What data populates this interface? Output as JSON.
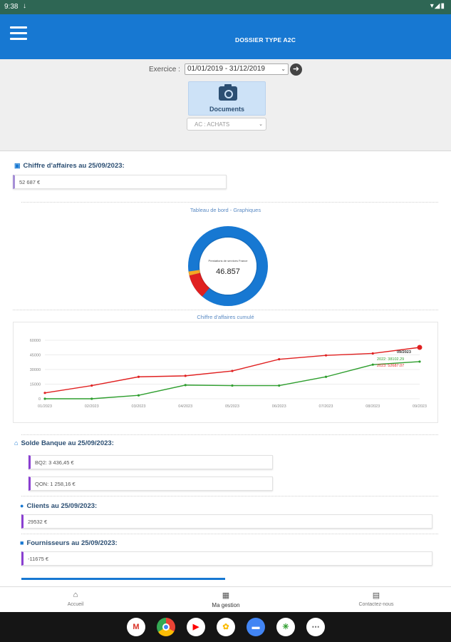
{
  "status_bar": {
    "time": "9:38"
  },
  "app_bar": {
    "title": "DOSSIER TYPE A2C"
  },
  "filters": {
    "exercise_label": "Exercice :",
    "exercise_value": "01/01/2019 - 31/12/2019",
    "documents_label": "Documents",
    "journal_value": "AC : ACHATS"
  },
  "revenue": {
    "title": "Chiffre d'affaires au 25/09/2023:",
    "value": "52 687 €"
  },
  "dashboard": {
    "caption": "Tableau de bord - Graphiques",
    "donut_caption": "Prestations de services France",
    "donut_value": "46.857",
    "donut_colors": [
      "#1778d2",
      "#e02020",
      "#f5a623"
    ]
  },
  "cumulative": {
    "caption": "Chiffre d'affaires cumulé",
    "tooltip_title": "09/2023",
    "tooltip_line_2022": "2022: 38102.29",
    "tooltip_line_2023": "2023: 52687.07"
  },
  "chart_data": {
    "type": "line",
    "x": [
      "01/2023",
      "02/2023",
      "03/2023",
      "04/2023",
      "05/2023",
      "06/2023",
      "07/2023",
      "08/2023",
      "09/2023"
    ],
    "y_ticks": [
      "0",
      "15000",
      "30000",
      "45000",
      "60000"
    ],
    "ylim": [
      0,
      60000
    ],
    "series": [
      {
        "name": "2023",
        "color": "#e02020",
        "values": [
          6000,
          13500,
          22500,
          23500,
          28500,
          40500,
          44500,
          46500,
          52687
        ]
      },
      {
        "name": "2022",
        "color": "#2e9e2e",
        "values": [
          0,
          0,
          3500,
          14000,
          13500,
          13500,
          22500,
          35000,
          38102
        ]
      }
    ],
    "grid": true
  },
  "bank": {
    "title": "Solde Banque au 25/09/2023:",
    "accounts": [
      "BQ2: 3 436,45 €",
      "QON: 1 258,16 €"
    ]
  },
  "clients": {
    "title": "Clients au 25/09/2023:",
    "value": "29532 €"
  },
  "suppliers": {
    "title": "Fournisseurs au 25/09/2023:",
    "value": "-11675 €"
  },
  "bottom_nav": {
    "home": "Accueil",
    "management": "Ma gestion",
    "contact": "Contactez-nous"
  }
}
